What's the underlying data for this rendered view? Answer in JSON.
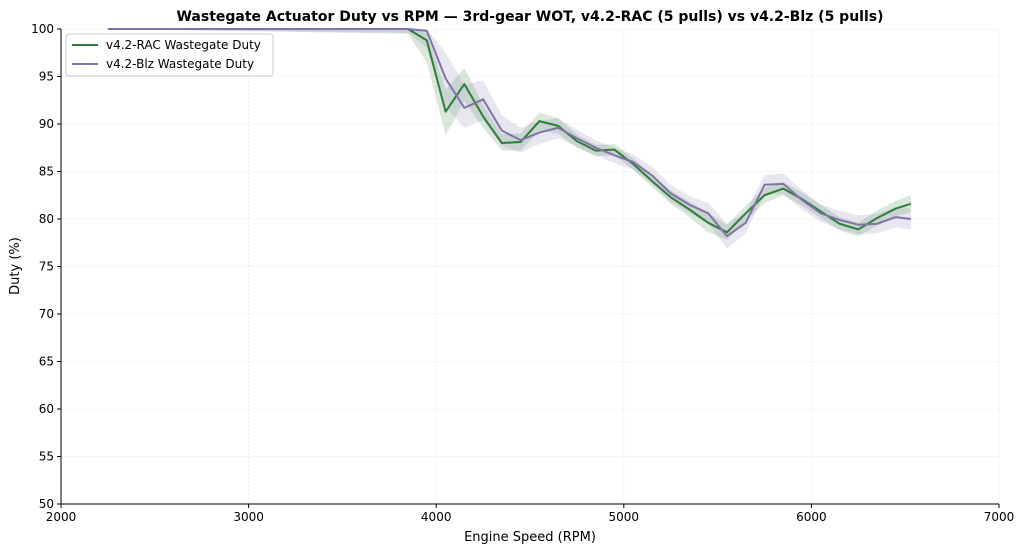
{
  "chart_data": {
    "type": "line",
    "title": "Wastegate Actuator Duty vs RPM — 3rd-gear WOT, v4.2-RAC (5 pulls) vs v4.2-Blz (5 pulls)",
    "xlabel": "Engine Speed (RPM)",
    "ylabel": "Duty (%)",
    "xlim": [
      2000,
      7000
    ],
    "ylim": [
      50,
      100
    ],
    "xticks": [
      2000,
      3000,
      4000,
      5000,
      6000,
      7000
    ],
    "yticks": [
      50,
      55,
      60,
      65,
      70,
      75,
      80,
      85,
      90,
      95,
      100
    ],
    "grid": true,
    "legend_position": "top-left",
    "series": [
      {
        "name": "v4.2-RAC Wastegate Duty",
        "color": "#2e7d3a",
        "band_color": "#2e7d3a",
        "x": [
          2250,
          3850,
          3950,
          4050,
          4150,
          4250,
          4350,
          4450,
          4550,
          4650,
          4750,
          4850,
          4950,
          5050,
          5150,
          5250,
          5350,
          5450,
          5550,
          5650,
          5750,
          5850,
          5950,
          6050,
          6150,
          6250,
          6350,
          6450,
          6530
        ],
        "values": [
          100,
          100,
          98.8,
          91.3,
          94.2,
          90.8,
          88.0,
          88.1,
          90.3,
          89.8,
          88.2,
          87.2,
          87.3,
          85.8,
          84.0,
          82.3,
          81.0,
          79.6,
          78.6,
          80.6,
          82.5,
          83.2,
          82.1,
          80.8,
          79.5,
          78.9,
          80.1,
          81.1,
          81.6
        ],
        "band_low": [
          100,
          99.5,
          96.5,
          88.8,
          92.4,
          89.6,
          87.2,
          87.2,
          89.3,
          89.0,
          87.5,
          86.6,
          86.7,
          85.2,
          83.4,
          81.6,
          80.2,
          78.6,
          77.8,
          79.8,
          81.7,
          82.5,
          81.4,
          80.1,
          78.8,
          78.2,
          79.3,
          80.3,
          80.7
        ],
        "band_high": [
          100,
          100,
          99.6,
          93.6,
          95.9,
          92.0,
          88.9,
          89.0,
          91.2,
          90.6,
          88.9,
          87.8,
          87.9,
          86.4,
          84.6,
          83.0,
          81.8,
          80.6,
          79.4,
          81.4,
          83.3,
          83.9,
          82.8,
          81.5,
          80.2,
          79.6,
          80.9,
          81.9,
          82.5
        ]
      },
      {
        "name": "v4.2-Blz Wastegate Duty",
        "color": "#7f74a8",
        "band_color": "#7f74a8",
        "x": [
          2250,
          3850,
          3950,
          4050,
          4150,
          4250,
          4350,
          4450,
          4550,
          4650,
          4750,
          4850,
          4950,
          5050,
          5150,
          5250,
          5350,
          5450,
          5550,
          5650,
          5750,
          5850,
          5950,
          6050,
          6150,
          6250,
          6350,
          6450,
          6530
        ],
        "values": [
          100,
          100,
          99.8,
          94.8,
          91.7,
          92.6,
          89.3,
          88.3,
          89.1,
          89.6,
          88.5,
          87.5,
          86.7,
          86.0,
          84.6,
          82.7,
          81.5,
          80.6,
          78.2,
          79.6,
          83.6,
          83.7,
          82.0,
          80.6,
          79.9,
          79.4,
          79.5,
          80.2,
          80.0
        ],
        "band_low": [
          100,
          99.6,
          98.0,
          91.8,
          89.6,
          90.4,
          87.7,
          87.0,
          87.9,
          88.5,
          87.6,
          86.7,
          85.9,
          85.2,
          83.7,
          81.8,
          80.6,
          79.5,
          76.9,
          78.5,
          82.6,
          82.6,
          81.0,
          79.7,
          78.9,
          78.4,
          78.5,
          79.1,
          78.9
        ],
        "band_high": [
          100,
          100,
          100,
          97.5,
          94.1,
          94.6,
          90.9,
          89.6,
          90.3,
          90.6,
          89.4,
          88.3,
          87.5,
          86.8,
          85.5,
          83.6,
          82.4,
          81.7,
          79.5,
          80.7,
          84.6,
          84.8,
          83.0,
          81.5,
          80.9,
          80.4,
          80.5,
          81.3,
          81.1
        ]
      }
    ]
  }
}
